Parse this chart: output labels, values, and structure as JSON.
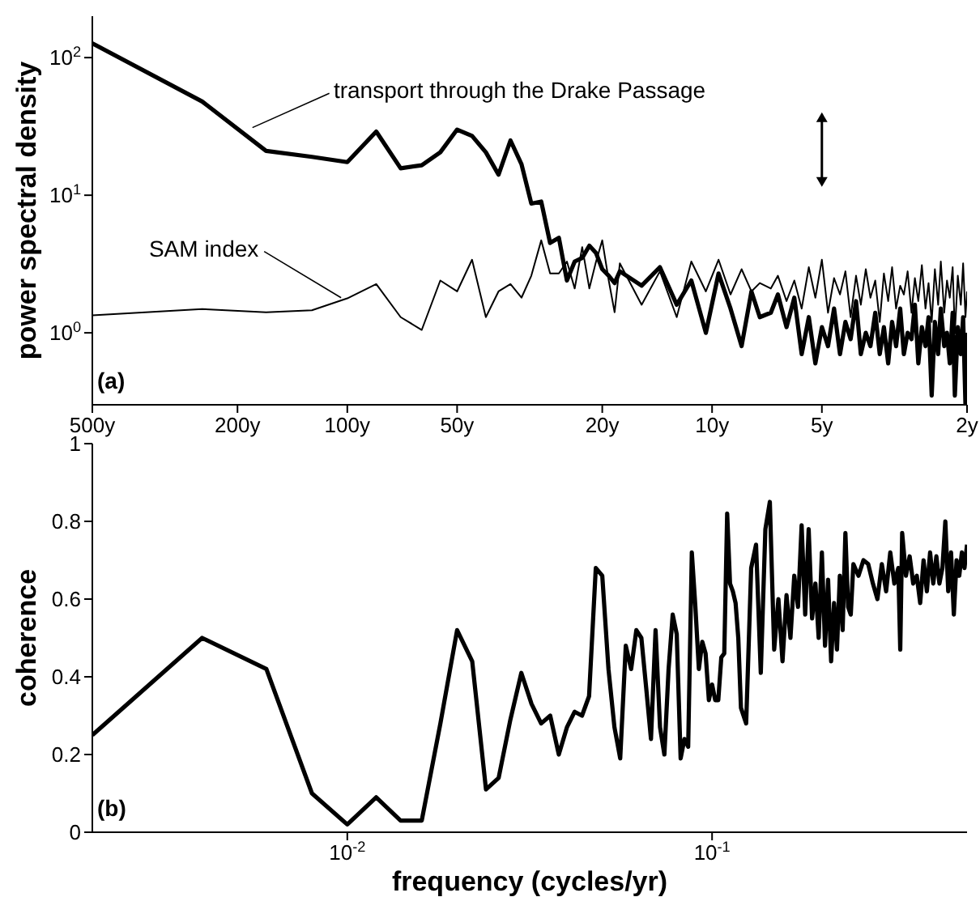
{
  "chart_data": [
    {
      "type": "line",
      "ylabel": "power spectral density",
      "log": "xy",
      "marker": "none",
      "annotations": [
        "(a)"
      ],
      "xlim": [
        500,
        2
      ],
      "ylim": [
        0.3,
        200
      ],
      "xticks": [
        {
          "value": 500,
          "label": "500y"
        },
        {
          "value": 200,
          "label": "200y"
        },
        {
          "value": 100,
          "label": "100y"
        },
        {
          "value": 50,
          "label": "50y"
        },
        {
          "value": 20,
          "label": "20y"
        },
        {
          "value": 10,
          "label": "10y"
        },
        {
          "value": 5,
          "label": "5y"
        },
        {
          "value": 2,
          "label": "2y"
        }
      ],
      "yticks": [
        {
          "value": 1,
          "label": "10$^{0}$"
        },
        {
          "value": 10,
          "label": "10$^{1}$"
        },
        {
          "value": 100,
          "label": "10$^{2}$"
        }
      ],
      "x": [
        500,
        250,
        167,
        125,
        100,
        83.3,
        71.4,
        62.5,
        55.6,
        50,
        45.5,
        41.7,
        38.5,
        35.7,
        33.3,
        31.3,
        29.4,
        27.8,
        26.3,
        25,
        23.8,
        22.7,
        21.7,
        20.8,
        20,
        19.2,
        18.5,
        17.9,
        15.6,
        13.9,
        12.5,
        11.4,
        10.4,
        9.6,
        8.9,
        8.3,
        7.8,
        7.4,
        6.9,
        6.6,
        6.25,
        5.95,
        5.68,
        5.43,
        5.21,
        5,
        4.81,
        4.63,
        4.46,
        4.31,
        4.17,
        4.03,
        3.91,
        3.79,
        3.68,
        3.57,
        3.47,
        3.38,
        3.29,
        3.21,
        3.13,
        3.05,
        2.98,
        2.91,
        2.84,
        2.78,
        2.72,
        2.66,
        2.6,
        2.55,
        2.5,
        2.45,
        2.4,
        2.36,
        2.31,
        2.27,
        2.23,
        2.19,
        2.16,
        2.12,
        2.08,
        2.05,
        2.02,
        2
      ],
      "series": [
        {
          "name": "transport through the Drake Passage",
          "color": "#000000",
          "values": [
            127,
            48,
            21,
            19,
            17.4,
            29,
            15.7,
            16.5,
            20.5,
            30,
            27,
            20.5,
            14.1,
            25,
            16.8,
            8.7,
            9,
            4.5,
            4.9,
            2.4,
            3.3,
            3.5,
            4.3,
            3.8,
            2.9,
            2.6,
            2.3,
            2.8,
            2.2,
            3.0,
            1.6,
            2.4,
            1.0,
            2.7,
            1.5,
            0.8,
            2.0,
            1.3,
            1.4,
            1.9,
            1.1,
            1.8,
            0.7,
            1.3,
            0.6,
            1.1,
            0.8,
            1.5,
            0.7,
            1.2,
            0.9,
            1.7,
            0.7,
            1.0,
            0.8,
            1.4,
            0.7,
            1.1,
            0.6,
            1.2,
            0.8,
            1.5,
            0.7,
            1.0,
            0.9,
            1.6,
            0.6,
            1.1,
            0.8,
            1.3,
            0.35,
            1.2,
            0.7,
            1.5,
            0.8,
            1.0,
            0.6,
            1.4,
            0.35,
            1.1,
            0.7,
            1.3,
            0.3,
            1.0
          ]
        },
        {
          "name": "SAM index",
          "color": "#000000",
          "values": [
            1.34,
            1.49,
            1.41,
            1.46,
            1.78,
            2.26,
            1.3,
            1.05,
            2.4,
            2.0,
            3.4,
            1.3,
            2.0,
            2.26,
            1.8,
            2.6,
            4.7,
            2.7,
            2.7,
            3.3,
            2.1,
            4.2,
            2.1,
            3.3,
            4.7,
            2.4,
            1.41,
            3.2,
            1.6,
            2.8,
            1.3,
            3.3,
            2.0,
            3.4,
            1.9,
            2.9,
            2.0,
            2.3,
            2.1,
            2.6,
            1.7,
            2.4,
            1.5,
            3.0,
            1.8,
            3.4,
            1.4,
            2.5,
            1.9,
            2.8,
            1.3,
            2.6,
            1.6,
            2.9,
            1.8,
            2.4,
            1.2,
            2.7,
            1.7,
            3.0,
            1.5,
            2.2,
            1.9,
            2.8,
            1.4,
            2.5,
            1.7,
            3.1,
            1.5,
            2.3,
            1.2,
            2.9,
            1.6,
            3.3,
            1.4,
            2.4,
            1.8,
            3.0,
            1.0,
            2.6,
            1.6,
            3.2,
            1.3,
            2.0
          ]
        }
      ]
    },
    {
      "type": "line",
      "xlabel": "frequency (cycles/yr)",
      "ylabel": "coherence",
      "log": "x",
      "marker": "none",
      "annotations": [
        "(b)"
      ],
      "xlim": [
        0.002,
        0.5
      ],
      "ylim": [
        0,
        1
      ],
      "xticks": [
        {
          "value": 0.01,
          "label": "10$^{-2}$"
        },
        {
          "value": 0.1,
          "label": "10$^{-1}$"
        }
      ],
      "yticks": [
        0,
        0.2,
        0.4,
        0.6,
        0.8,
        1
      ],
      "x": [
        0.002,
        0.004,
        0.006,
        0.008,
        0.01,
        0.012,
        0.014,
        0.016,
        0.018,
        0.02,
        0.022,
        0.024,
        0.026,
        0.028,
        0.03,
        0.032,
        0.034,
        0.036,
        0.038,
        0.04,
        0.042,
        0.044,
        0.046,
        0.048,
        0.05,
        0.052,
        0.054,
        0.056,
        0.058,
        0.06,
        0.062,
        0.064,
        0.066,
        0.068,
        0.07,
        0.072,
        0.074,
        0.076,
        0.078,
        0.08,
        0.082,
        0.084,
        0.086,
        0.088,
        0.09,
        0.092,
        0.094,
        0.096,
        0.098,
        0.1,
        0.102,
        0.104,
        0.106,
        0.108,
        0.11,
        0.112,
        0.114,
        0.116,
        0.118,
        0.12,
        0.124,
        0.128,
        0.132,
        0.136,
        0.14,
        0.144,
        0.148,
        0.152,
        0.156,
        0.16,
        0.164,
        0.168,
        0.172,
        0.176,
        0.18,
        0.184,
        0.188,
        0.192,
        0.196,
        0.2,
        0.204,
        0.208,
        0.212,
        0.216,
        0.22,
        0.224,
        0.228,
        0.232,
        0.236,
        0.24,
        0.244,
        0.252,
        0.26,
        0.268,
        0.276,
        0.284,
        0.292,
        0.3,
        0.308,
        0.316,
        0.324,
        0.328,
        0.332,
        0.34,
        0.348,
        0.356,
        0.364,
        0.372,
        0.38,
        0.388,
        0.396,
        0.404,
        0.412,
        0.42,
        0.428,
        0.436,
        0.444,
        0.452,
        0.46,
        0.468,
        0.476,
        0.484,
        0.492,
        0.5
      ],
      "series": [
        {
          "color": "#000000",
          "values": [
            0.25,
            0.5,
            0.42,
            0.1,
            0.02,
            0.09,
            0.03,
            0.03,
            0.28,
            0.52,
            0.44,
            0.11,
            0.14,
            0.29,
            0.41,
            0.33,
            0.28,
            0.3,
            0.2,
            0.27,
            0.31,
            0.3,
            0.35,
            0.68,
            0.66,
            0.42,
            0.27,
            0.19,
            0.48,
            0.42,
            0.52,
            0.5,
            0.37,
            0.24,
            0.52,
            0.27,
            0.2,
            0.42,
            0.56,
            0.51,
            0.19,
            0.24,
            0.22,
            0.72,
            0.58,
            0.42,
            0.49,
            0.46,
            0.34,
            0.38,
            0.34,
            0.34,
            0.45,
            0.46,
            0.82,
            0.64,
            0.62,
            0.59,
            0.5,
            0.32,
            0.28,
            0.68,
            0.74,
            0.41,
            0.78,
            0.85,
            0.47,
            0.6,
            0.44,
            0.61,
            0.5,
            0.66,
            0.58,
            0.79,
            0.56,
            0.78,
            0.55,
            0.64,
            0.5,
            0.72,
            0.48,
            0.65,
            0.44,
            0.59,
            0.47,
            0.66,
            0.52,
            0.77,
            0.58,
            0.56,
            0.69,
            0.66,
            0.7,
            0.69,
            0.64,
            0.6,
            0.69,
            0.62,
            0.72,
            0.64,
            0.68,
            0.47,
            0.77,
            0.66,
            0.71,
            0.64,
            0.66,
            0.59,
            0.7,
            0.62,
            0.72,
            0.64,
            0.71,
            0.64,
            0.68,
            0.8,
            0.62,
            0.72,
            0.56,
            0.7,
            0.66,
            0.72,
            0.68,
            0.74
          ]
        }
      ]
    }
  ]
}
